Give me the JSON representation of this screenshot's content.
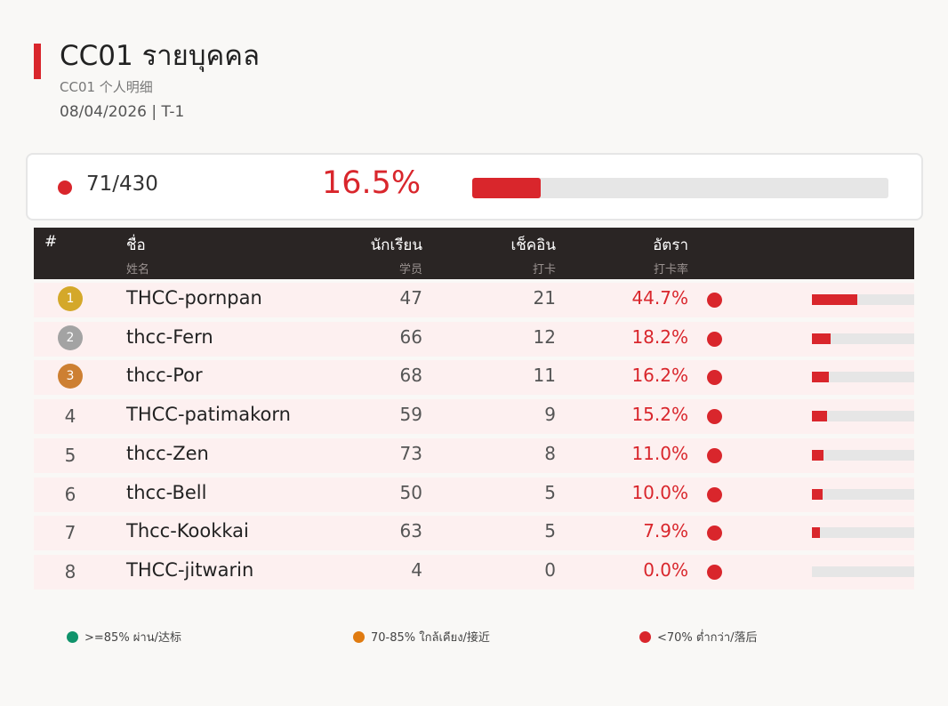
{
  "header": {
    "title": "CC01  รายบุคคล",
    "subtitle": "CC01  个人明细",
    "dateline": "08/04/2026   |   T-1"
  },
  "summary": {
    "count": "71/430",
    "percent": "16.5%",
    "fill": 0.165,
    "color": "#d9262c"
  },
  "table": {
    "columns": [
      {
        "label": "#",
        "sub": ""
      },
      {
        "label": "ชื่อ",
        "sub": "姓名"
      },
      {
        "label": "นักเรียน",
        "sub": "学员"
      },
      {
        "label": "เช็คอิน",
        "sub": "打卡"
      },
      {
        "label": "อัตรา",
        "sub": "打卡率"
      }
    ],
    "rows": [
      {
        "rank": "1",
        "name": "THCC-pornpan",
        "students": "47",
        "checkins": "21",
        "rate": "44.7%",
        "fill": 0.447,
        "medal": "#d4a82a"
      },
      {
        "rank": "2",
        "name": "thcc-Fern",
        "students": "66",
        "checkins": "12",
        "rate": "18.2%",
        "fill": 0.182,
        "medal": "#a3a3a3"
      },
      {
        "rank": "3",
        "name": "thcc-Por",
        "students": "68",
        "checkins": "11",
        "rate": "16.2%",
        "fill": 0.162,
        "medal": "#cd7f32"
      },
      {
        "rank": "4",
        "name": "THCC-patimakorn",
        "students": "59",
        "checkins": "9",
        "rate": "15.2%",
        "fill": 0.152,
        "medal": ""
      },
      {
        "rank": "5",
        "name": "thcc-Zen",
        "students": "73",
        "checkins": "8",
        "rate": "11.0%",
        "fill": 0.11,
        "medal": ""
      },
      {
        "rank": "6",
        "name": "thcc-Bell",
        "students": "50",
        "checkins": "5",
        "rate": "10.0%",
        "fill": 0.1,
        "medal": ""
      },
      {
        "rank": "7",
        "name": "Thcc-Kookkai",
        "students": "63",
        "checkins": "5",
        "rate": "7.9%",
        "fill": 0.079,
        "medal": ""
      },
      {
        "rank": "8",
        "name": "THCC-jitwarin",
        "students": "4",
        "checkins": "0",
        "rate": "0.0%",
        "fill": 0.0,
        "medal": ""
      }
    ]
  },
  "legend": [
    {
      "label": ">=85% ผ่าน/达标",
      "color": "#10936b"
    },
    {
      "label": "70-85% ใกล้เคียง/接近",
      "color": "#e07b10"
    },
    {
      "label": "<70% ต่ำกว่า/落后",
      "color": "#d9262c"
    }
  ]
}
